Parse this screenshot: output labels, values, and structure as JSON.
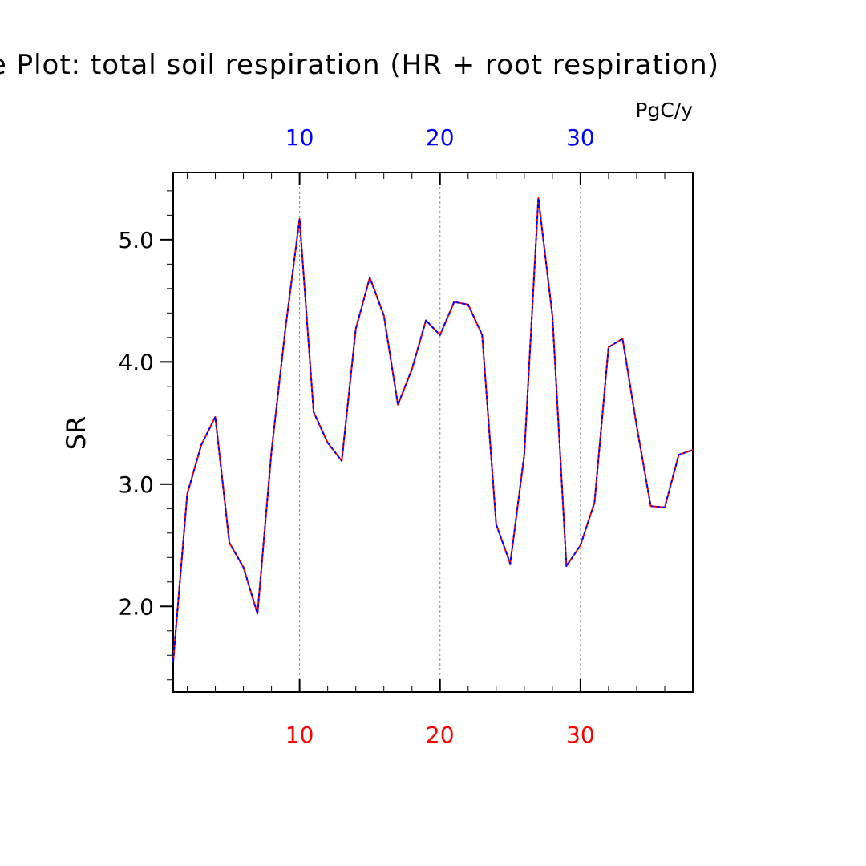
{
  "chart_data": {
    "type": "line",
    "title": "Difference Plot: total soil respiration (HR + root respiration)",
    "units": "PgC/y",
    "xlabel": "",
    "ylabel": "SR",
    "xlim": [
      1,
      38
    ],
    "ylim": [
      1.3,
      5.55
    ],
    "x_ticks_bottom": [
      10,
      20,
      30
    ],
    "x_ticks_top": [
      10,
      20,
      30
    ],
    "y_ticks": [
      2.0,
      3.0,
      4.0,
      5.0
    ],
    "y_tick_labels": [
      "2.0",
      "3.0",
      "4.0",
      "5.0"
    ],
    "x_tick_labels_bottom": [
      "10",
      "20",
      "30"
    ],
    "x_tick_labels_top": [
      "10",
      "20",
      "30"
    ],
    "grid": "vertical dashed at major x ticks",
    "colors": {
      "bottom_axis_labels": "#ff0000",
      "top_axis_labels": "#0000ff",
      "series_1": "#ff0000",
      "series_2": "#0000ff",
      "grid": "#888888",
      "axes": "#000000"
    },
    "x": [
      1,
      2,
      3,
      4,
      5,
      6,
      7,
      8,
      9,
      10,
      11,
      12,
      13,
      14,
      15,
      16,
      17,
      18,
      19,
      20,
      21,
      22,
      23,
      24,
      25,
      26,
      27,
      28,
      29,
      30,
      31,
      32,
      33,
      34,
      35,
      36,
      37,
      38
    ],
    "series": [
      {
        "values": [
          1.55,
          2.92,
          3.32,
          3.55,
          2.52,
          2.32,
          1.94,
          3.27,
          4.28,
          5.17,
          3.59,
          3.34,
          3.19,
          4.27,
          4.69,
          4.38,
          3.65,
          3.94,
          4.34,
          4.22,
          4.49,
          4.47,
          4.22,
          2.67,
          2.35,
          3.24,
          5.34,
          4.38,
          2.33,
          2.5,
          2.85,
          4.12,
          4.19,
          3.48,
          2.82,
          2.81,
          3.24,
          3.28
        ]
      },
      {
        "values": [
          1.55,
          2.92,
          3.32,
          3.55,
          2.52,
          2.32,
          1.94,
          3.27,
          4.28,
          5.17,
          3.59,
          3.34,
          3.19,
          4.27,
          4.69,
          4.38,
          3.65,
          3.94,
          4.34,
          4.22,
          4.49,
          4.47,
          4.22,
          2.67,
          2.35,
          3.24,
          5.34,
          4.38,
          2.33,
          2.5,
          2.85,
          4.12,
          4.19,
          3.48,
          2.82,
          2.81,
          3.24,
          3.28
        ]
      }
    ]
  }
}
